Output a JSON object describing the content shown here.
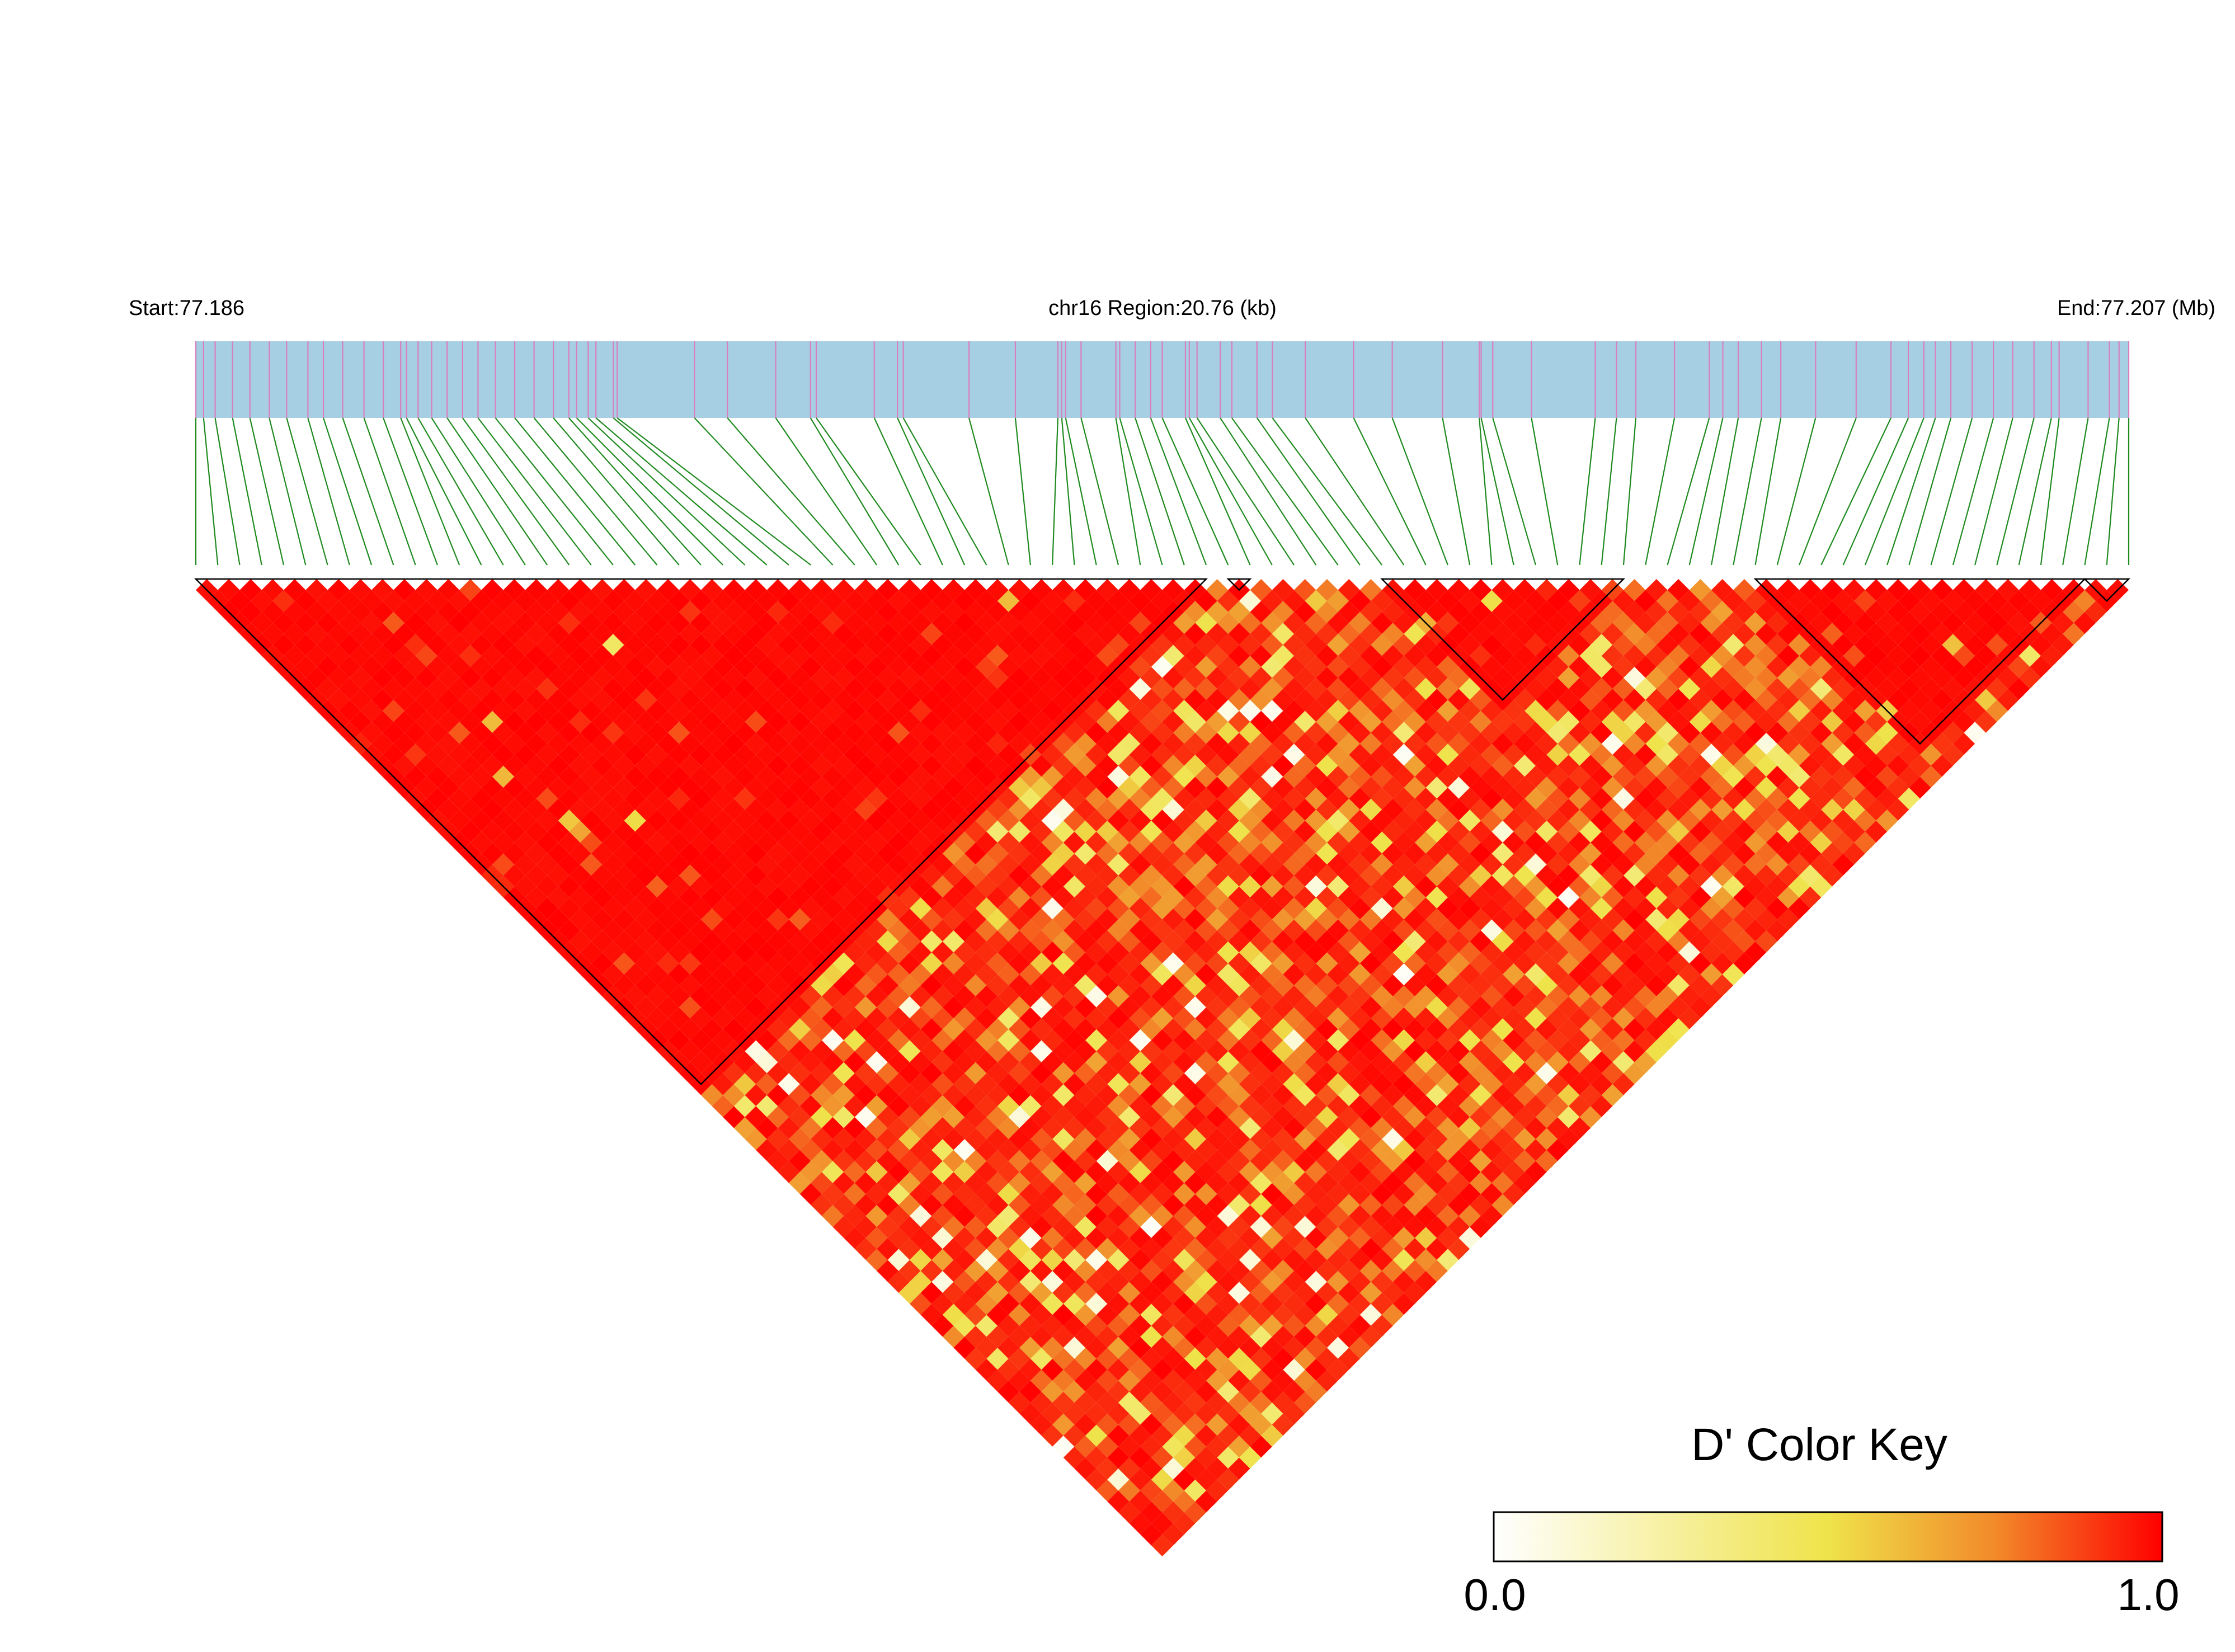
{
  "chart_data": {
    "type": "heatmap",
    "title": "",
    "header": {
      "start_label": "Start:77.186",
      "region_label": "chr16 Region:20.76 (kb)",
      "end_label": "End:77.207 (Mb)"
    },
    "region": {
      "chromosome": "chr16",
      "start_mb": 77.186,
      "end_mb": 77.207,
      "length_kb": 20.76
    },
    "snp_count": 89,
    "snp_positions_frac": [
      0.0,
      0.004,
      0.01,
      0.019,
      0.028,
      0.038,
      0.047,
      0.058,
      0.066,
      0.076,
      0.087,
      0.097,
      0.106,
      0.109,
      0.115,
      0.122,
      0.13,
      0.138,
      0.146,
      0.155,
      0.165,
      0.175,
      0.185,
      0.193,
      0.197,
      0.203,
      0.207,
      0.216,
      0.218,
      0.258,
      0.275,
      0.3,
      0.318,
      0.321,
      0.351,
      0.363,
      0.366,
      0.4,
      0.424,
      0.446,
      0.448,
      0.45,
      0.458,
      0.476,
      0.478,
      0.486,
      0.494,
      0.5,
      0.512,
      0.514,
      0.518,
      0.53,
      0.536,
      0.549,
      0.557,
      0.574,
      0.599,
      0.619,
      0.645,
      0.664,
      0.665,
      0.671,
      0.691,
      0.724,
      0.735,
      0.745,
      0.765,
      0.783,
      0.79,
      0.798,
      0.81,
      0.82,
      0.838,
      0.859,
      0.877,
      0.886,
      0.894,
      0.9,
      0.908,
      0.919,
      0.93,
      0.94,
      0.951,
      0.96,
      0.964,
      0.979,
      0.99,
      0.995,
      1.0
    ],
    "ld_blocks": [
      {
        "start": 0,
        "end": 46
      },
      {
        "start": 47,
        "end": 48
      },
      {
        "start": 54,
        "end": 65
      },
      {
        "start": 71,
        "end": 86
      },
      {
        "start": 86,
        "end": 88
      }
    ],
    "legend": {
      "title": "D' Color Key",
      "min_label": "0.0",
      "max_label": "1.0",
      "min": 0.0,
      "max": 1.0,
      "placement": "bottom-right"
    },
    "colors": {
      "track_fill": "#a6cfe3",
      "snp_mark": "#d97fbf",
      "connector_line": "#1f8a1f",
      "d_prime_low": "#ffffff",
      "d_prime_mid": "#efe34a",
      "d_prime_high": "#ff0000",
      "block_outline": "#000000"
    }
  }
}
